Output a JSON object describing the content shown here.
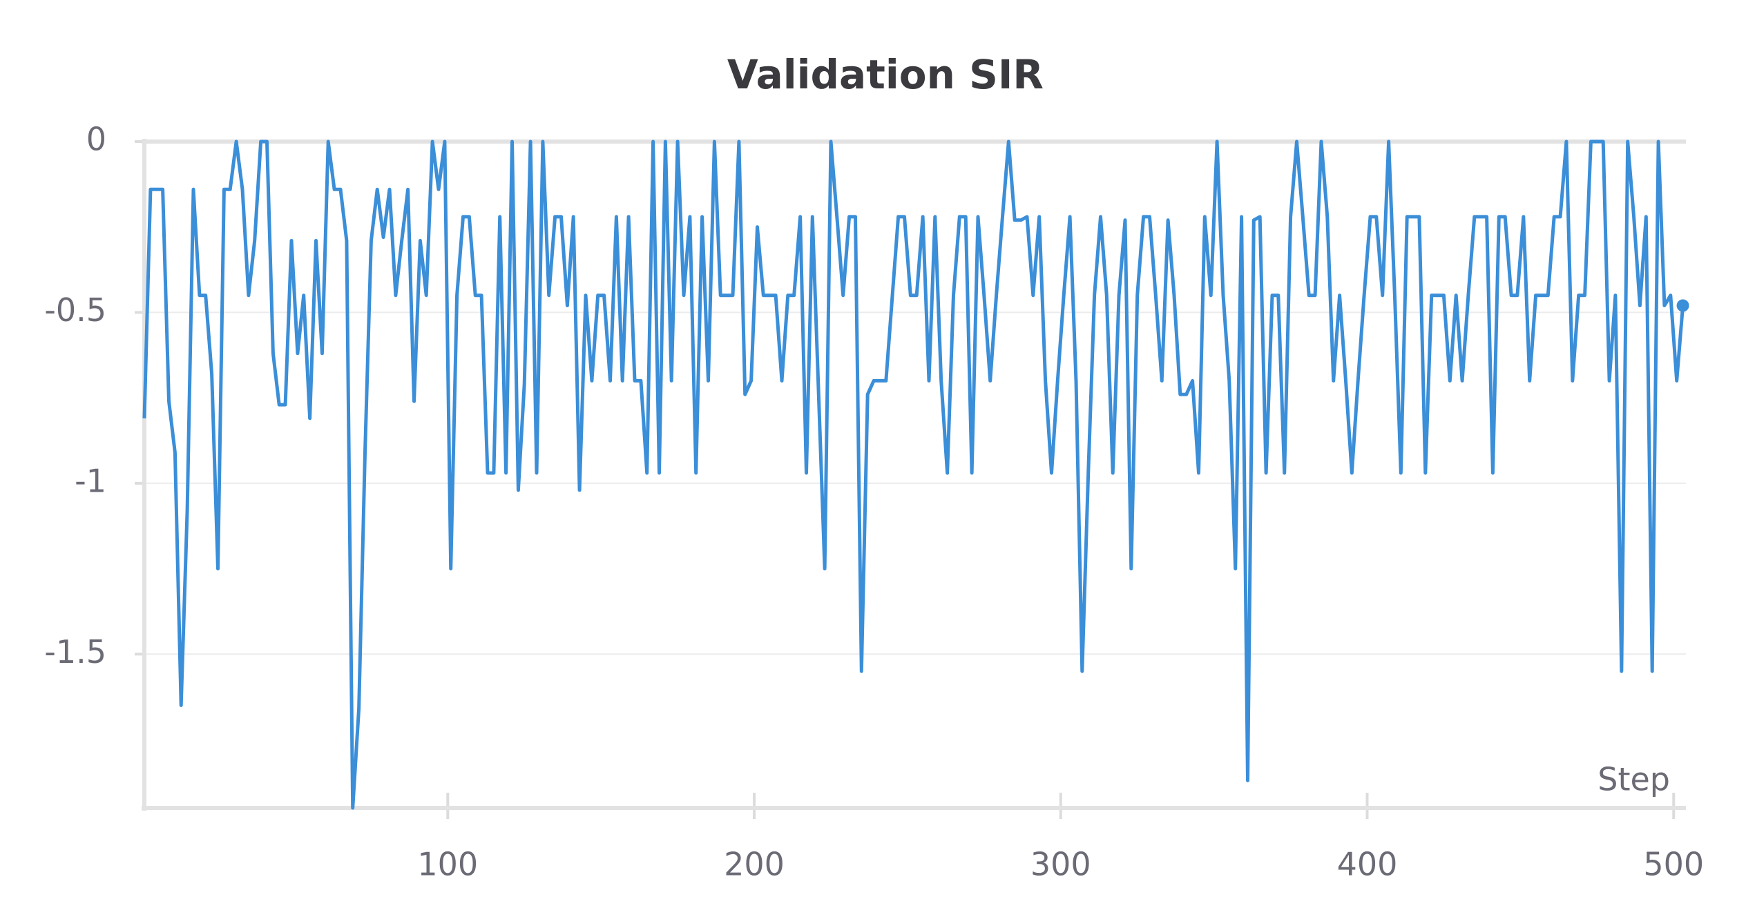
{
  "chart_data": {
    "type": "line",
    "title": "Validation SIR",
    "x_label": "Step",
    "color": "#3b8ed8",
    "x": [
      1,
      3,
      7,
      9,
      11,
      13,
      15,
      17,
      19,
      21,
      23,
      25,
      27,
      29,
      31,
      33,
      35,
      37,
      39,
      41,
      43,
      45,
      47,
      49,
      51,
      53,
      55,
      57,
      59,
      61,
      63,
      65,
      67,
      69,
      71,
      73,
      75,
      77,
      79,
      81,
      83,
      85,
      87,
      89,
      91,
      93,
      95,
      97,
      99,
      101,
      103,
      105,
      107,
      109,
      111,
      113,
      115,
      117,
      119,
      121,
      123,
      125,
      127,
      129,
      131,
      133,
      135,
      137,
      139,
      141,
      143,
      145,
      147,
      149,
      151,
      153,
      155,
      157,
      159,
      161,
      163,
      165,
      167,
      169,
      171,
      173,
      175,
      177,
      179,
      181,
      183,
      185,
      187,
      189,
      191,
      193,
      195,
      197,
      199,
      201,
      203,
      205,
      207,
      209,
      211,
      213,
      215,
      217,
      219,
      223,
      225,
      227,
      229,
      231,
      233,
      235,
      237,
      239,
      243,
      247,
      249,
      251,
      253,
      255,
      257,
      259,
      261,
      263,
      265,
      267,
      269,
      271,
      273,
      275,
      277,
      279,
      281,
      283,
      285,
      287,
      289,
      291,
      293,
      295,
      297,
      299,
      301,
      303,
      305,
      307,
      309,
      311,
      313,
      315,
      317,
      319,
      321,
      323,
      325,
      327,
      329,
      331,
      333,
      335,
      337,
      339,
      341,
      343,
      345,
      347,
      349,
      351,
      353,
      355,
      357,
      359,
      361,
      363,
      365,
      367,
      369,
      371,
      373,
      375,
      377,
      379,
      381,
      383,
      385,
      387,
      389,
      391,
      393,
      395,
      397,
      399,
      401,
      403,
      405,
      407,
      409,
      411,
      413,
      417,
      419,
      421,
      425,
      427,
      429,
      431,
      433,
      435,
      439,
      441,
      443,
      445,
      447,
      449,
      451,
      453,
      455,
      459,
      461,
      463,
      465,
      467,
      469,
      471,
      473,
      475,
      477,
      479,
      481,
      483,
      485,
      487,
      489,
      491,
      493,
      495,
      497,
      499,
      501,
      503
    ],
    "values": [
      -0.81,
      -0.14,
      -0.14,
      -0.76,
      -0.91,
      -1.65,
      -1.08,
      -0.14,
      -0.45,
      -0.45,
      -0.68,
      -1.25,
      -0.14,
      -0.14,
      0,
      -0.14,
      -0.45,
      -0.29,
      0,
      0,
      -0.62,
      -0.77,
      -0.77,
      -0.29,
      -0.62,
      -0.45,
      -0.81,
      -0.29,
      -0.62,
      0,
      -0.14,
      -0.14,
      -0.29,
      -1.95,
      -1.66,
      -0.91,
      -0.29,
      -0.14,
      -0.28,
      -0.14,
      -0.45,
      -0.29,
      -0.14,
      -0.76,
      -0.29,
      -0.45,
      0,
      -0.14,
      0,
      -1.25,
      -0.45,
      -0.22,
      -0.22,
      -0.45,
      -0.45,
      -0.97,
      -0.97,
      -0.22,
      -0.97,
      0,
      -1.02,
      -0.71,
      0,
      -0.97,
      0,
      -0.45,
      -0.22,
      -0.22,
      -0.48,
      -0.22,
      -1.02,
      -0.45,
      -0.7,
      -0.45,
      -0.45,
      -0.7,
      -0.22,
      -0.7,
      -0.22,
      -0.7,
      -0.7,
      -0.97,
      0,
      -0.97,
      0,
      -0.7,
      0,
      -0.45,
      -0.22,
      -0.97,
      -0.22,
      -0.7,
      0,
      -0.45,
      -0.45,
      -0.45,
      0,
      -0.74,
      -0.7,
      -0.25,
      -0.45,
      -0.45,
      -0.45,
      -0.7,
      -0.45,
      -0.45,
      -0.22,
      -0.97,
      -0.22,
      -1.25,
      0,
      -0.22,
      -0.45,
      -0.22,
      -0.22,
      -1.55,
      -0.74,
      -0.7,
      -0.7,
      -0.22,
      -0.22,
      -0.45,
      -0.45,
      -0.22,
      -0.7,
      -0.22,
      -0.7,
      -0.97,
      -0.45,
      -0.22,
      -0.22,
      -0.97,
      -0.22,
      -0.45,
      -0.7,
      -0.45,
      -0.22,
      0,
      -0.23,
      -0.23,
      -0.22,
      -0.45,
      -0.22,
      -0.7,
      -0.97,
      -0.7,
      -0.45,
      -0.22,
      -0.7,
      -1.55,
      -0.97,
      -0.45,
      -0.22,
      -0.45,
      -0.97,
      -0.45,
      -0.23,
      -1.25,
      -0.45,
      -0.22,
      -0.22,
      -0.45,
      -0.7,
      -0.23,
      -0.45,
      -0.74,
      -0.74,
      -0.7,
      -0.97,
      -0.22,
      -0.45,
      0,
      -0.45,
      -0.7,
      -1.25,
      -0.22,
      -1.87,
      -0.23,
      -0.22,
      -0.97,
      -0.45,
      -0.45,
      -0.97,
      -0.22,
      0,
      -0.22,
      -0.45,
      -0.45,
      0,
      -0.22,
      -0.7,
      -0.45,
      -0.7,
      -0.97,
      -0.7,
      -0.45,
      -0.22,
      -0.22,
      -0.45,
      0,
      -0.45,
      -0.97,
      -0.22,
      -0.22,
      -0.97,
      -0.45,
      -0.45,
      -0.7,
      -0.45,
      -0.7,
      -0.45,
      -0.22,
      -0.22,
      -0.97,
      -0.22,
      -0.22,
      -0.45,
      -0.45,
      -0.22,
      -0.7,
      -0.45,
      -0.45,
      -0.22,
      -0.22,
      0,
      -0.7,
      -0.45,
      -0.45,
      0,
      0,
      0,
      -0.7,
      -0.45,
      -1.55,
      0,
      -0.22,
      -0.48,
      -0.22,
      -1.55,
      0,
      -0.48,
      -0.45,
      -0.7,
      -0.48
    ],
    "xlim": [
      1,
      504
    ],
    "xticks": [
      100,
      200,
      300,
      400,
      500
    ],
    "ylim": [
      -1.95,
      0
    ],
    "yticks": [
      0,
      -0.5,
      -1,
      -1.5
    ],
    "grid": true
  }
}
